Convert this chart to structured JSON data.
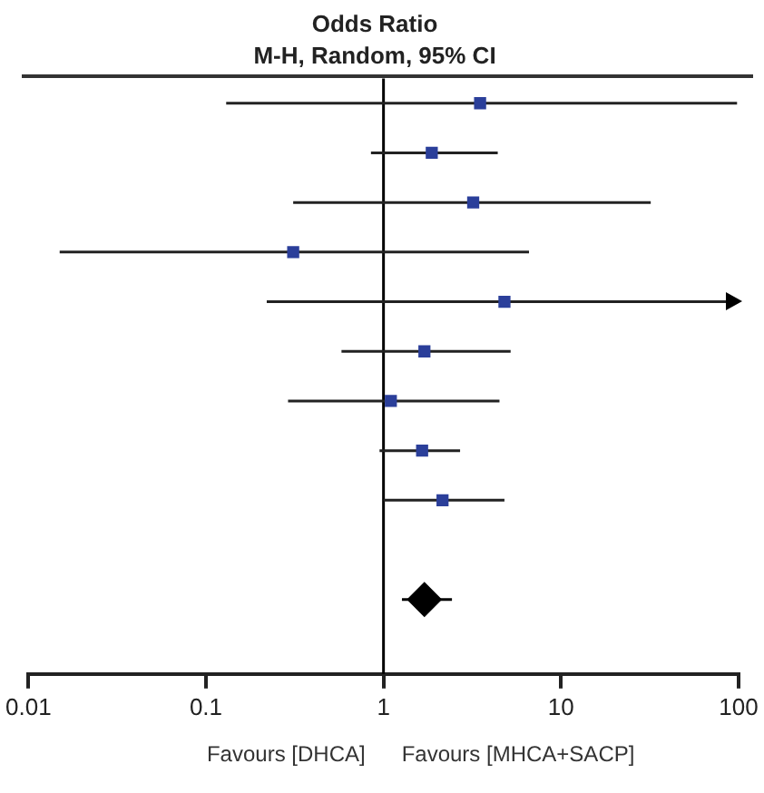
{
  "chart_data": {
    "type": "scatter",
    "orientation": "horizontal",
    "title": "Odds Ratio",
    "subtitle": "M-H, Random, 95% CI",
    "categories": [
      null,
      null,
      null,
      null,
      null,
      null,
      null,
      null,
      null,
      null,
      null,
      null
    ],
    "series": [
      {
        "color": "#2b3f9a",
        "marker": "square",
        "values": [
          3.5,
          1.87,
          3.2,
          0.31,
          4.8,
          1.7,
          1.1,
          1.65,
          2.15,
          null,
          null,
          null
        ],
        "errors": [
          [
            0.13,
            98
          ],
          [
            0.85,
            4.4
          ],
          [
            0.31,
            32
          ],
          [
            0.015,
            6.6
          ],
          [
            0.22,
            100
          ],
          [
            0.58,
            5.2
          ],
          [
            0.29,
            4.5
          ],
          [
            0.95,
            2.7
          ],
          [
            1.0,
            4.8
          ],
          null,
          null,
          null
        ]
      },
      {
        "color": "#000000",
        "marker": "diamond",
        "values": [
          null,
          null,
          null,
          null,
          null,
          null,
          null,
          null,
          null,
          null,
          1.7,
          null
        ],
        "errors": [
          null,
          null,
          null,
          null,
          null,
          null,
          null,
          null,
          null,
          null,
          [
            1.27,
            2.43
          ],
          null
        ]
      }
    ],
    "xlim": [
      0.01,
      100
    ],
    "xticks": [
      0.01,
      0.1,
      1,
      10,
      100
    ],
    "log": "x",
    "grid": false,
    "legend": false,
    "tick_labels": "x",
    "ref_lines": [
      {
        "axis": "x",
        "value": 1,
        "color": "#000000"
      }
    ],
    "annotations": [
      "Favours [DHCA]",
      "Favours [MHCA+SACP]"
    ]
  }
}
